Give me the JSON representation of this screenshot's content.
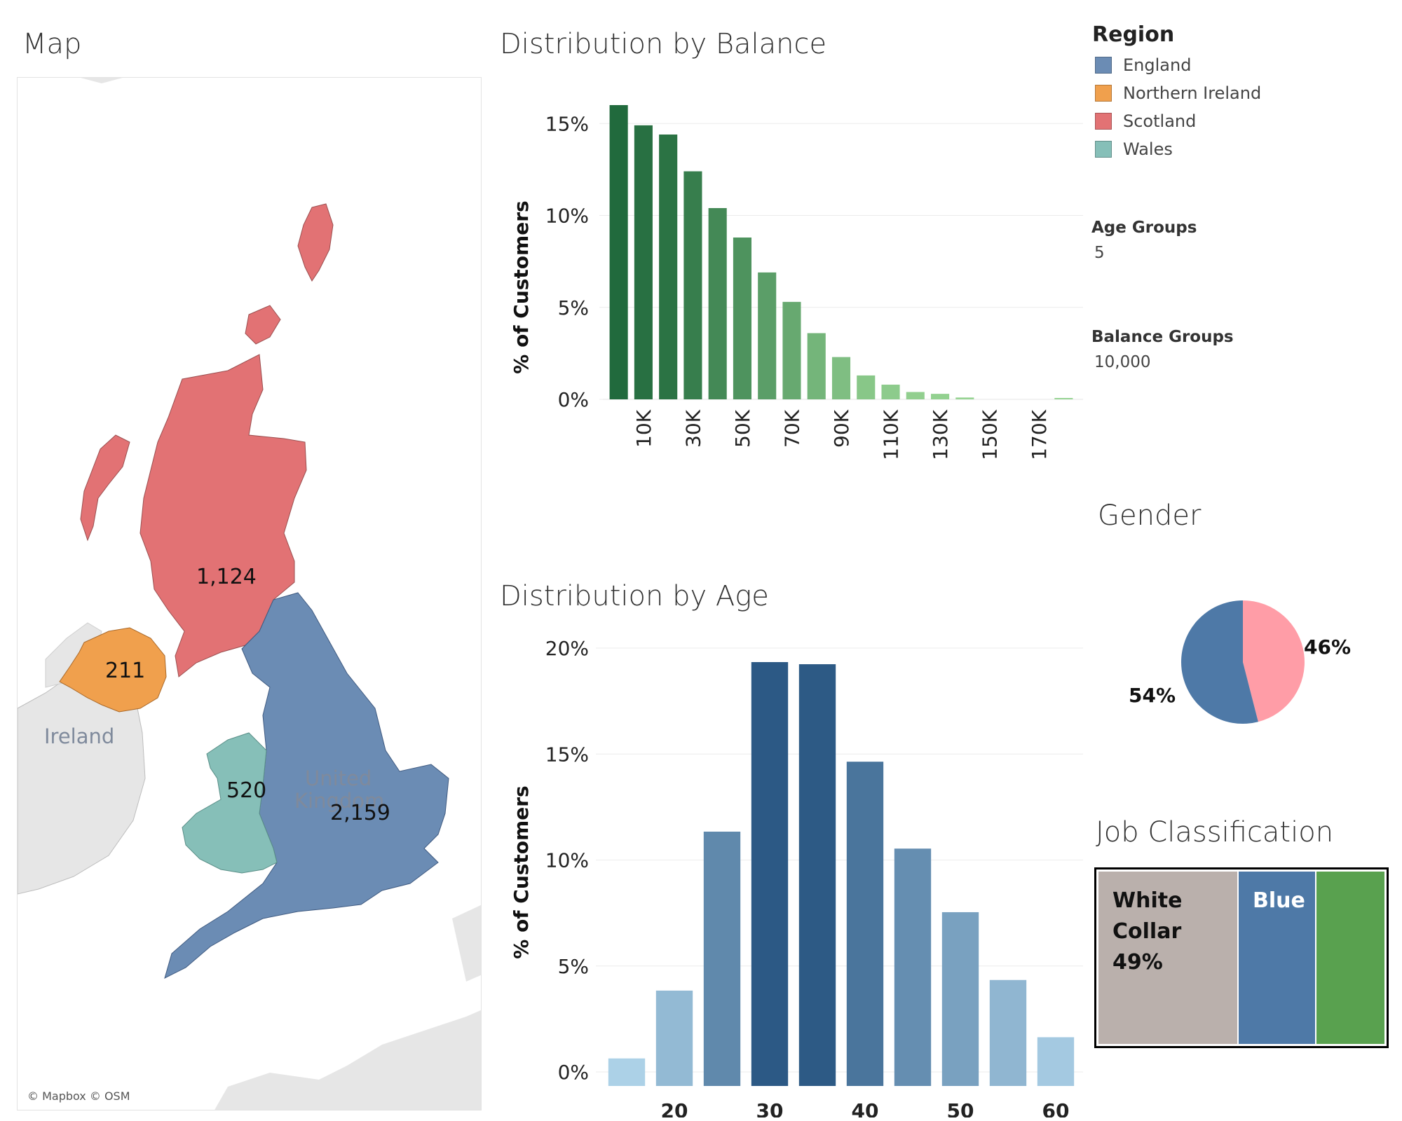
{
  "titles": {
    "map": "Map",
    "balance": "Distribution by Balance",
    "age": "Distribution by Age",
    "gender": "Gender",
    "job": "Job Classification"
  },
  "map": {
    "region_values": [
      {
        "region": "Scotland",
        "label": "1,124"
      },
      {
        "region": "Northern Ireland",
        "label": "211"
      },
      {
        "region": "Wales",
        "label": "520"
      },
      {
        "region": "England",
        "label": "2,159"
      }
    ],
    "places": {
      "ireland": "Ireland",
      "uk_line1": "United",
      "uk_line2": "Kingdom"
    },
    "credit": "© Mapbox © OSM",
    "colors": {
      "England": "#6b8cb4",
      "Northern Ireland": "#f0a04d",
      "Scotland": "#e27274",
      "Wales": "#86bfb8",
      "Land": "#e6e6e6"
    }
  },
  "legend": {
    "title": "Region",
    "items": [
      {
        "label": "England",
        "color": "#6b8cb4"
      },
      {
        "label": "Northern Ireland",
        "color": "#f0a04d"
      },
      {
        "label": "Scotland",
        "color": "#e27274"
      },
      {
        "label": "Wales",
        "color": "#86bfb8"
      }
    ]
  },
  "parameters": {
    "age_groups": {
      "label": "Age Groups",
      "value": "5"
    },
    "balance_groups": {
      "label": "Balance Groups",
      "value": "10,000"
    }
  },
  "chart_data": [
    {
      "id": "balance",
      "type": "bar",
      "title": "Distribution by Balance",
      "ylabel": "% of Customers",
      "xlabel": "",
      "x": [
        0,
        10,
        20,
        30,
        40,
        50,
        60,
        70,
        80,
        90,
        100,
        110,
        120,
        130,
        140,
        150,
        160,
        170,
        180
      ],
      "values": [
        16.0,
        14.9,
        14.4,
        12.4,
        10.4,
        8.8,
        6.9,
        5.3,
        3.6,
        2.3,
        1.3,
        0.8,
        0.4,
        0.3,
        0.1,
        0,
        0,
        0,
        0.02
      ],
      "x_tick_labels": [
        "10K",
        "30K",
        "50K",
        "70K",
        "90K",
        "110K",
        "130K",
        "150K",
        "170K"
      ],
      "y_ticks": [
        "0%",
        "5%",
        "10%",
        "15%"
      ],
      "ylim": [
        0,
        16
      ],
      "gradient": {
        "from": "#98d594",
        "to": "#216a3d"
      }
    },
    {
      "id": "age",
      "type": "bar",
      "title": "Distribution by Age",
      "ylabel": "% of Customers",
      "xlabel": "",
      "x": [
        15,
        20,
        25,
        30,
        35,
        40,
        45,
        50,
        55,
        60
      ],
      "values": [
        1.3,
        4.5,
        12.0,
        20.0,
        19.9,
        15.3,
        11.2,
        8.2,
        5.0,
        2.3
      ],
      "x_tick_labels": [
        "20",
        "30",
        "40",
        "50",
        "60"
      ],
      "y_ticks": [
        "0%",
        "5%",
        "10%",
        "15%",
        "20%"
      ],
      "ylim": [
        0,
        20
      ],
      "gradient": {
        "from": "#b8dcf0",
        "to": "#2c5985"
      }
    },
    {
      "id": "gender",
      "type": "pie",
      "title": "Gender",
      "slices": [
        {
          "label": "54%",
          "value": 54,
          "color": "#4e79a7"
        },
        {
          "label": "46%",
          "value": 46,
          "color": "#ff9da7"
        }
      ]
    },
    {
      "id": "job",
      "type": "treemap",
      "title": "Job Classification",
      "cells": [
        {
          "label": "White\nCollar\n49%",
          "value": 49,
          "color": "#bab0ac",
          "text_color": "#111111"
        },
        {
          "label": "Blue",
          "value": 27,
          "color": "#4e79a7",
          "text_color": "#ffffff"
        },
        {
          "label": "",
          "value": 24,
          "color": "#59a14f",
          "text_color": "#ffffff"
        }
      ]
    }
  ]
}
